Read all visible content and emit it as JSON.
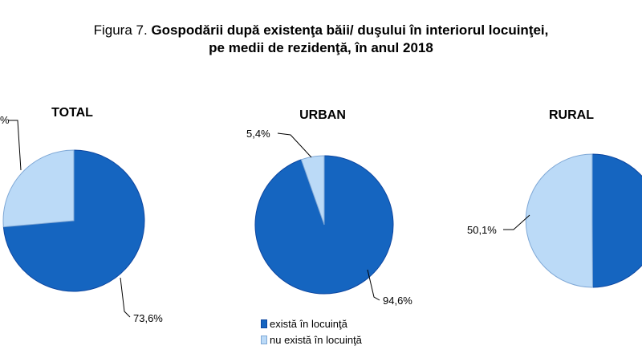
{
  "figure": {
    "prefix": "Figura 7.",
    "title_line1": "Gospodării după existenţa băii/ duşului în interiorul locuinţei,",
    "title_line2": "pe medii de rezidenţă, în anul 2018"
  },
  "colors": {
    "exista": "#1565C0",
    "nu_exista": "#BBDAF7",
    "edge": "#0D47A1"
  },
  "chart_data": [
    {
      "type": "pie",
      "title": "TOTAL",
      "labels": [
        "există în locuinţă",
        "nu există în locuinţă"
      ],
      "values": [
        73.6,
        26.4
      ],
      "value_labels": [
        "73,6%",
        "%"
      ]
    },
    {
      "type": "pie",
      "title": "URBAN",
      "labels": [
        "există în locuinţă",
        "nu există în locuinţă"
      ],
      "values": [
        94.6,
        5.4
      ],
      "value_labels": [
        "94,6%",
        "5,4%"
      ]
    },
    {
      "type": "pie",
      "title": "RURAL",
      "labels": [
        "există în locuinţă",
        "nu există în locuinţă"
      ],
      "values": [
        49.9,
        50.1
      ],
      "value_labels": [
        "",
        "50,1%"
      ]
    }
  ],
  "legend": {
    "items": [
      {
        "label": "există în locuinţă",
        "color": "#1565C0"
      },
      {
        "label": "nu există în locuinţă",
        "color": "#BBDAF7"
      }
    ]
  }
}
